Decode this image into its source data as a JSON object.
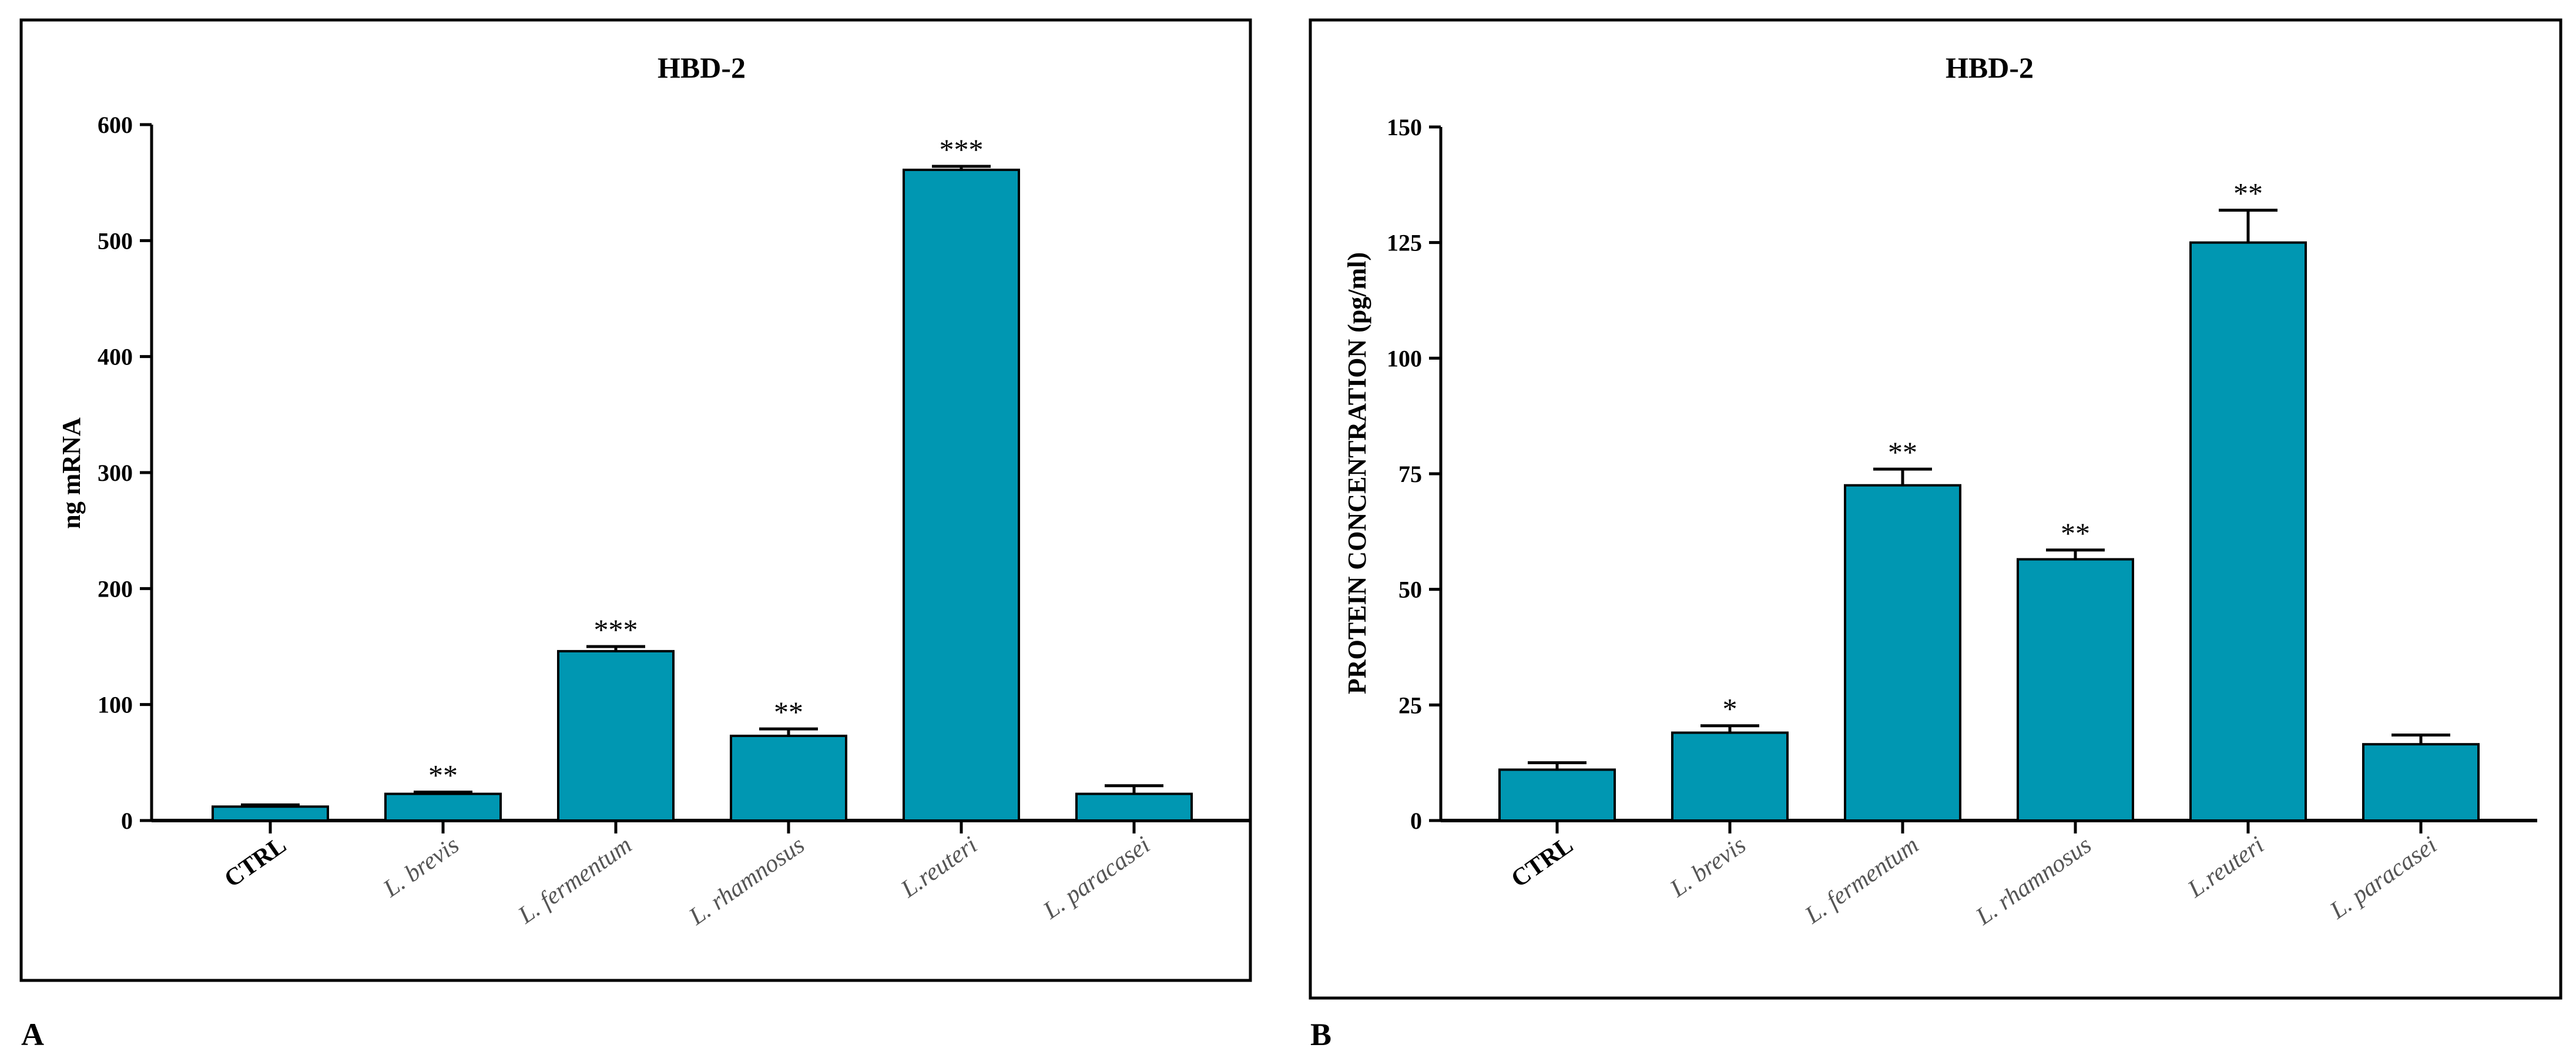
{
  "chart_data": [
    {
      "type": "bar",
      "panel": "A",
      "title": "HBD-2",
      "xlabel": "",
      "ylabel": "ng mRNA",
      "ylim": [
        0,
        600
      ],
      "yticks": [
        0,
        100,
        200,
        300,
        400,
        500,
        600
      ],
      "categories": [
        "CTRL",
        "L. brevis",
        "L. fermentum",
        "L. rhamnosus",
        "L.reuteri",
        "L. paracasei"
      ],
      "values": [
        12,
        23,
        146,
        73,
        561,
        23
      ],
      "errors": [
        1.5,
        1.5,
        4,
        6,
        3,
        7
      ],
      "significance": [
        "",
        "**",
        "***",
        "**",
        "***",
        ""
      ],
      "bar_color": "#0097b2",
      "grid": false
    },
    {
      "type": "bar",
      "panel": "B",
      "title": "HBD-2",
      "xlabel": "",
      "ylabel": "PROTEIN CONCENTRATION (pg/ml)",
      "ylim": [
        0,
        150
      ],
      "yticks": [
        0,
        25,
        50,
        75,
        100,
        125,
        150
      ],
      "categories": [
        "CTRL",
        "L. brevis",
        "L. fermentum",
        "L. rhamnosus",
        "L.reuteri",
        "L. paracasei"
      ],
      "values": [
        11,
        19,
        72.5,
        56.5,
        125,
        16.5
      ],
      "errors": [
        1.5,
        1.5,
        3.5,
        2,
        7,
        2
      ],
      "significance": [
        "",
        "*",
        "**",
        "**",
        "**",
        ""
      ],
      "bar_color": "#0097b2",
      "grid": false
    }
  ]
}
